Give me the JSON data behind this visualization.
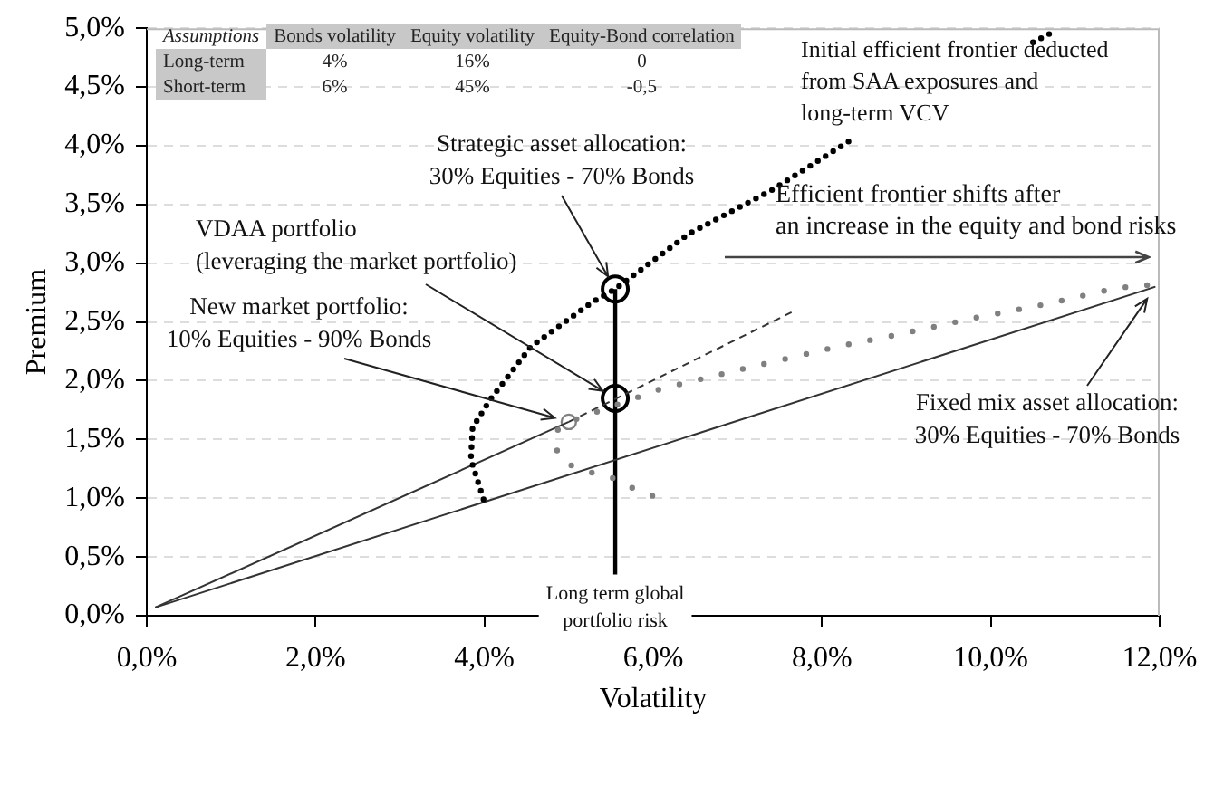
{
  "chart_data": {
    "type": "line",
    "xlabel": "Volatility",
    "ylabel": "Premium",
    "xlim": [
      0,
      12
    ],
    "ylim": [
      0,
      5
    ],
    "xticks": [
      {
        "value": 0,
        "label": "0,0%"
      },
      {
        "value": 2,
        "label": "2,0%"
      },
      {
        "value": 4,
        "label": "4,0%"
      },
      {
        "value": 6,
        "label": "6,0%"
      },
      {
        "value": 8,
        "label": "8,0%"
      },
      {
        "value": 10,
        "label": "10,0%"
      },
      {
        "value": 12,
        "label": "12,0%"
      }
    ],
    "yticks": [
      {
        "value": 0,
        "label": "0,0%"
      },
      {
        "value": 0.5,
        "label": "0,5%"
      },
      {
        "value": 1,
        "label": "1,0%"
      },
      {
        "value": 1.5,
        "label": "1,5%"
      },
      {
        "value": 2,
        "label": "2,0%"
      },
      {
        "value": 2.5,
        "label": "2,5%"
      },
      {
        "value": 3,
        "label": "3,0%"
      },
      {
        "value": 3.5,
        "label": "3,5%"
      },
      {
        "value": 4,
        "label": "4,0%"
      },
      {
        "value": 4.5,
        "label": "4,5%"
      },
      {
        "value": 5,
        "label": "5,0%"
      }
    ],
    "grid": "y",
    "legend": false,
    "series": [
      {
        "type": "line",
        "line_style": "dotted",
        "color": "#000000",
        "x": [
          3.99,
          3.84,
          3.86,
          4.06,
          4.55,
          5.28,
          5.55,
          6.42,
          7.4,
          8.39,
          9.6,
          10.5,
          10.77
        ],
        "values": [
          0.99,
          1.33,
          1.6,
          1.83,
          2.29,
          2.67,
          2.78,
          3.25,
          3.62,
          4.07,
          null,
          4.88,
          4.98
        ]
      },
      {
        "type": "line",
        "line_style": "dotted",
        "color": "#808080",
        "x": [
          5.99,
          5.71,
          5.47,
          5.26,
          4.95,
          4.85,
          4.85,
          5.0,
          5.82,
          6.09,
          7.06,
          8.18,
          8.95,
          9.78,
          10.64,
          11.5,
          11.95
        ],
        "values": [
          1.02,
          1.1,
          1.19,
          1.22,
          1.3,
          1.42,
          1.57,
          1.65,
          1.86,
          1.93,
          2.1,
          2.29,
          2.4,
          2.53,
          2.65,
          2.79,
          2.82
        ]
      },
      {
        "type": "line",
        "line_style": "solid",
        "color": "#333333",
        "x": [
          0.1,
          11.95
        ],
        "values": [
          0.07,
          2.8
        ]
      },
      {
        "type": "line",
        "line_style": "solid",
        "color": "#333333",
        "x": [
          0.1,
          5.0
        ],
        "values": [
          0.07,
          1.65
        ]
      },
      {
        "type": "line",
        "line_style": "dashed",
        "color": "#333333",
        "x": [
          5.0,
          7.66
        ],
        "values": [
          1.65,
          2.59
        ]
      },
      {
        "type": "line",
        "line_style": "solid",
        "color": "#000000",
        "x": [
          5.55,
          5.55
        ],
        "values": [
          0.35,
          2.78
        ]
      },
      {
        "type": "scatter",
        "marker": "circle",
        "color": "#000000",
        "x": [
          5.55,
          5.55
        ],
        "values": [
          2.78,
          1.85
        ]
      },
      {
        "type": "scatter",
        "marker": "circle",
        "color": "#808080",
        "x": [
          5.0
        ],
        "values": [
          1.65
        ]
      }
    ],
    "annotations": [
      "Assumptions",
      "Bonds volatility",
      "Equity volatility",
      "Equity-Bond correlation",
      "Long-term",
      "4%",
      "16%",
      "0",
      "Short-term",
      "6%",
      "45%",
      "-0,5",
      {
        "text": "Strategic asset allocation:\n30% Equities - 70% Bonds",
        "x": 5.55,
        "y": 2.78
      },
      {
        "text": "VDAA portfolio\n(leveraging the market portfolio)",
        "x": 5.55,
        "y": 1.85
      },
      {
        "text": "New market portfolio:\n10% Equities - 90% Bonds",
        "x": 5.0,
        "y": 1.65
      },
      {
        "text": "Fixed mix asset allocation:\n30% Equities - 70% Bonds",
        "x": 11.95,
        "y": 2.8
      },
      "Initial efficient frontier deducted\nfrom SAA exposures and\nlong-term VCV",
      "Efficient frontier shifts after\nan increase in the equity and bond risks",
      {
        "text": "Long term global\nportfolio risk",
        "x": 5.55,
        "y": 0.35
      }
    ]
  }
}
